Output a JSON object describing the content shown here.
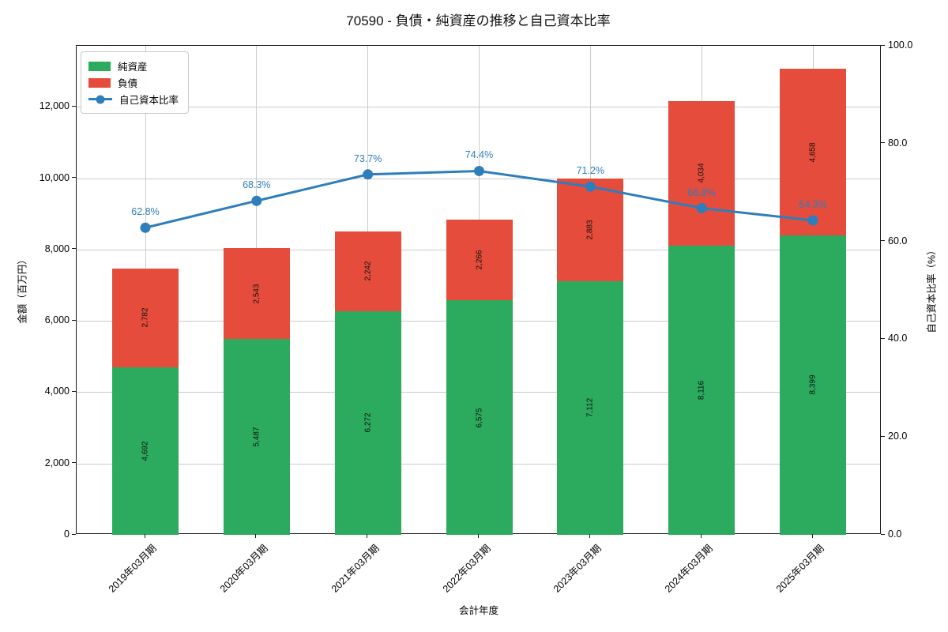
{
  "chart_data": {
    "type": "bar",
    "stacked": true,
    "title": "70590 - 負債・純資産の推移と自己資本比率",
    "xlabel": "会計年度",
    "ylabel_left": "金額（百万円）",
    "ylabel_right": "自己資本比率（%）",
    "categories": [
      "2019年03月期",
      "2020年03月期",
      "2021年03月期",
      "2022年03月期",
      "2023年03月期",
      "2024年03月期",
      "2025年03月期"
    ],
    "series": [
      {
        "name": "純資産",
        "color": "#2cab5e",
        "values": [
          4692,
          5487,
          6272,
          6575,
          7112,
          8116,
          8399
        ],
        "values_fmt": [
          "4,692",
          "5,487",
          "6,272",
          "6,575",
          "7,112",
          "8,116",
          "8,399"
        ]
      },
      {
        "name": "負債",
        "color": "#e54c3b",
        "values": [
          2782,
          2543,
          2242,
          2266,
          2883,
          4034,
          4658
        ],
        "values_fmt": [
          "2,782",
          "2,543",
          "2,242",
          "2,266",
          "2,883",
          "4,034",
          "4,658"
        ]
      }
    ],
    "line_series": {
      "name": "自己資本比率",
      "color": "#2e7ebc",
      "values": [
        62.8,
        68.3,
        73.7,
        74.4,
        71.2,
        66.8,
        64.3
      ],
      "labels": [
        "62.8%",
        "68.3%",
        "73.7%",
        "74.4%",
        "71.2%",
        "66.8%",
        "64.3%"
      ]
    },
    "ylim_left": [
      0,
      13710
    ],
    "ylim_right": [
      0,
      100
    ],
    "yticks_left": {
      "values": [
        0,
        2000,
        4000,
        6000,
        8000,
        10000,
        12000
      ],
      "labels": [
        "0",
        "2,000",
        "4,000",
        "6,000",
        "8,000",
        "10,000",
        "12,000"
      ]
    },
    "yticks_right": {
      "values": [
        0,
        20,
        40,
        60,
        80,
        100
      ],
      "labels": [
        "0.0",
        "20.0",
        "40.0",
        "60.0",
        "80.0",
        "100.0"
      ]
    },
    "grid": true,
    "legend_position": "upper left",
    "colors": {
      "grid": "#cbcbcb",
      "spine": "#1a1a1a",
      "pct_label": "#2e7ebc"
    }
  }
}
